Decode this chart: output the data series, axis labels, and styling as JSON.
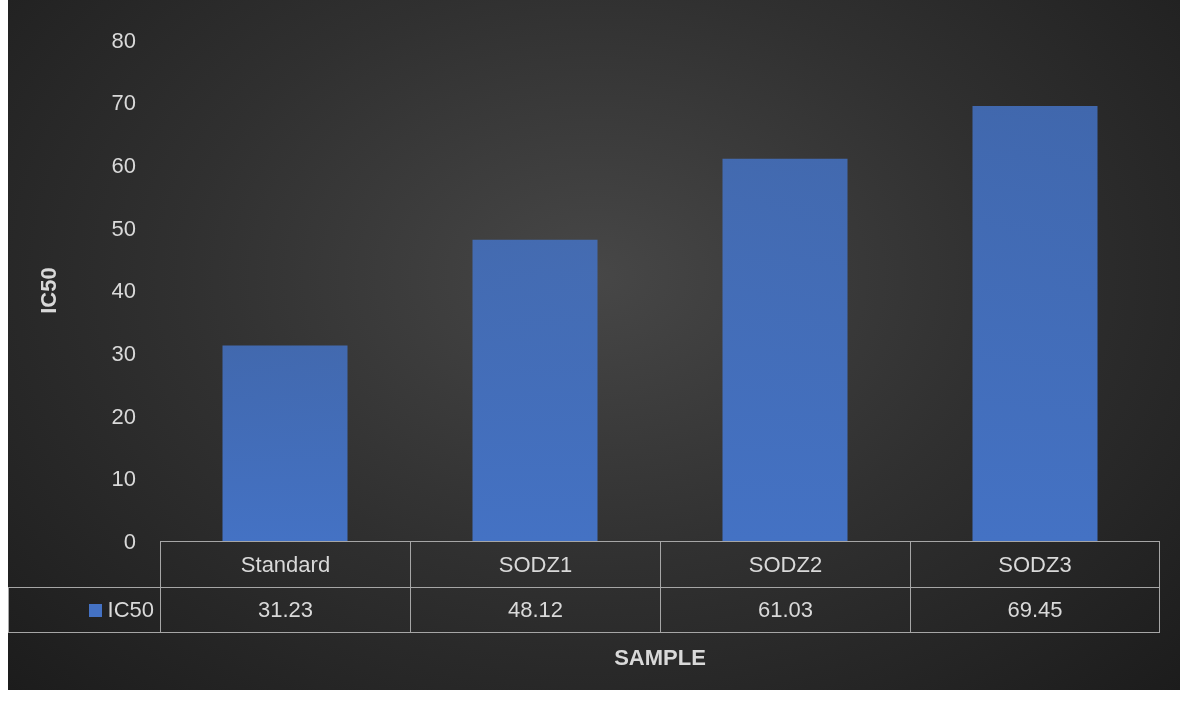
{
  "chart_data": {
    "type": "bar",
    "xlabel": "SAMPLE",
    "ylabel": "IC50",
    "categories": [
      "Standard",
      "SODZ1",
      "SODZ2",
      "SODZ3"
    ],
    "series": [
      {
        "name": "IC50",
        "color": "#4472c4",
        "values": [
          31.23,
          48.12,
          61.03,
          69.45
        ]
      }
    ],
    "ylim": [
      0,
      80
    ],
    "yticks": [
      0,
      10,
      20,
      30,
      40,
      50,
      60,
      70,
      80
    ],
    "grid": false,
    "data_labels": true,
    "legend": "bottom"
  }
}
